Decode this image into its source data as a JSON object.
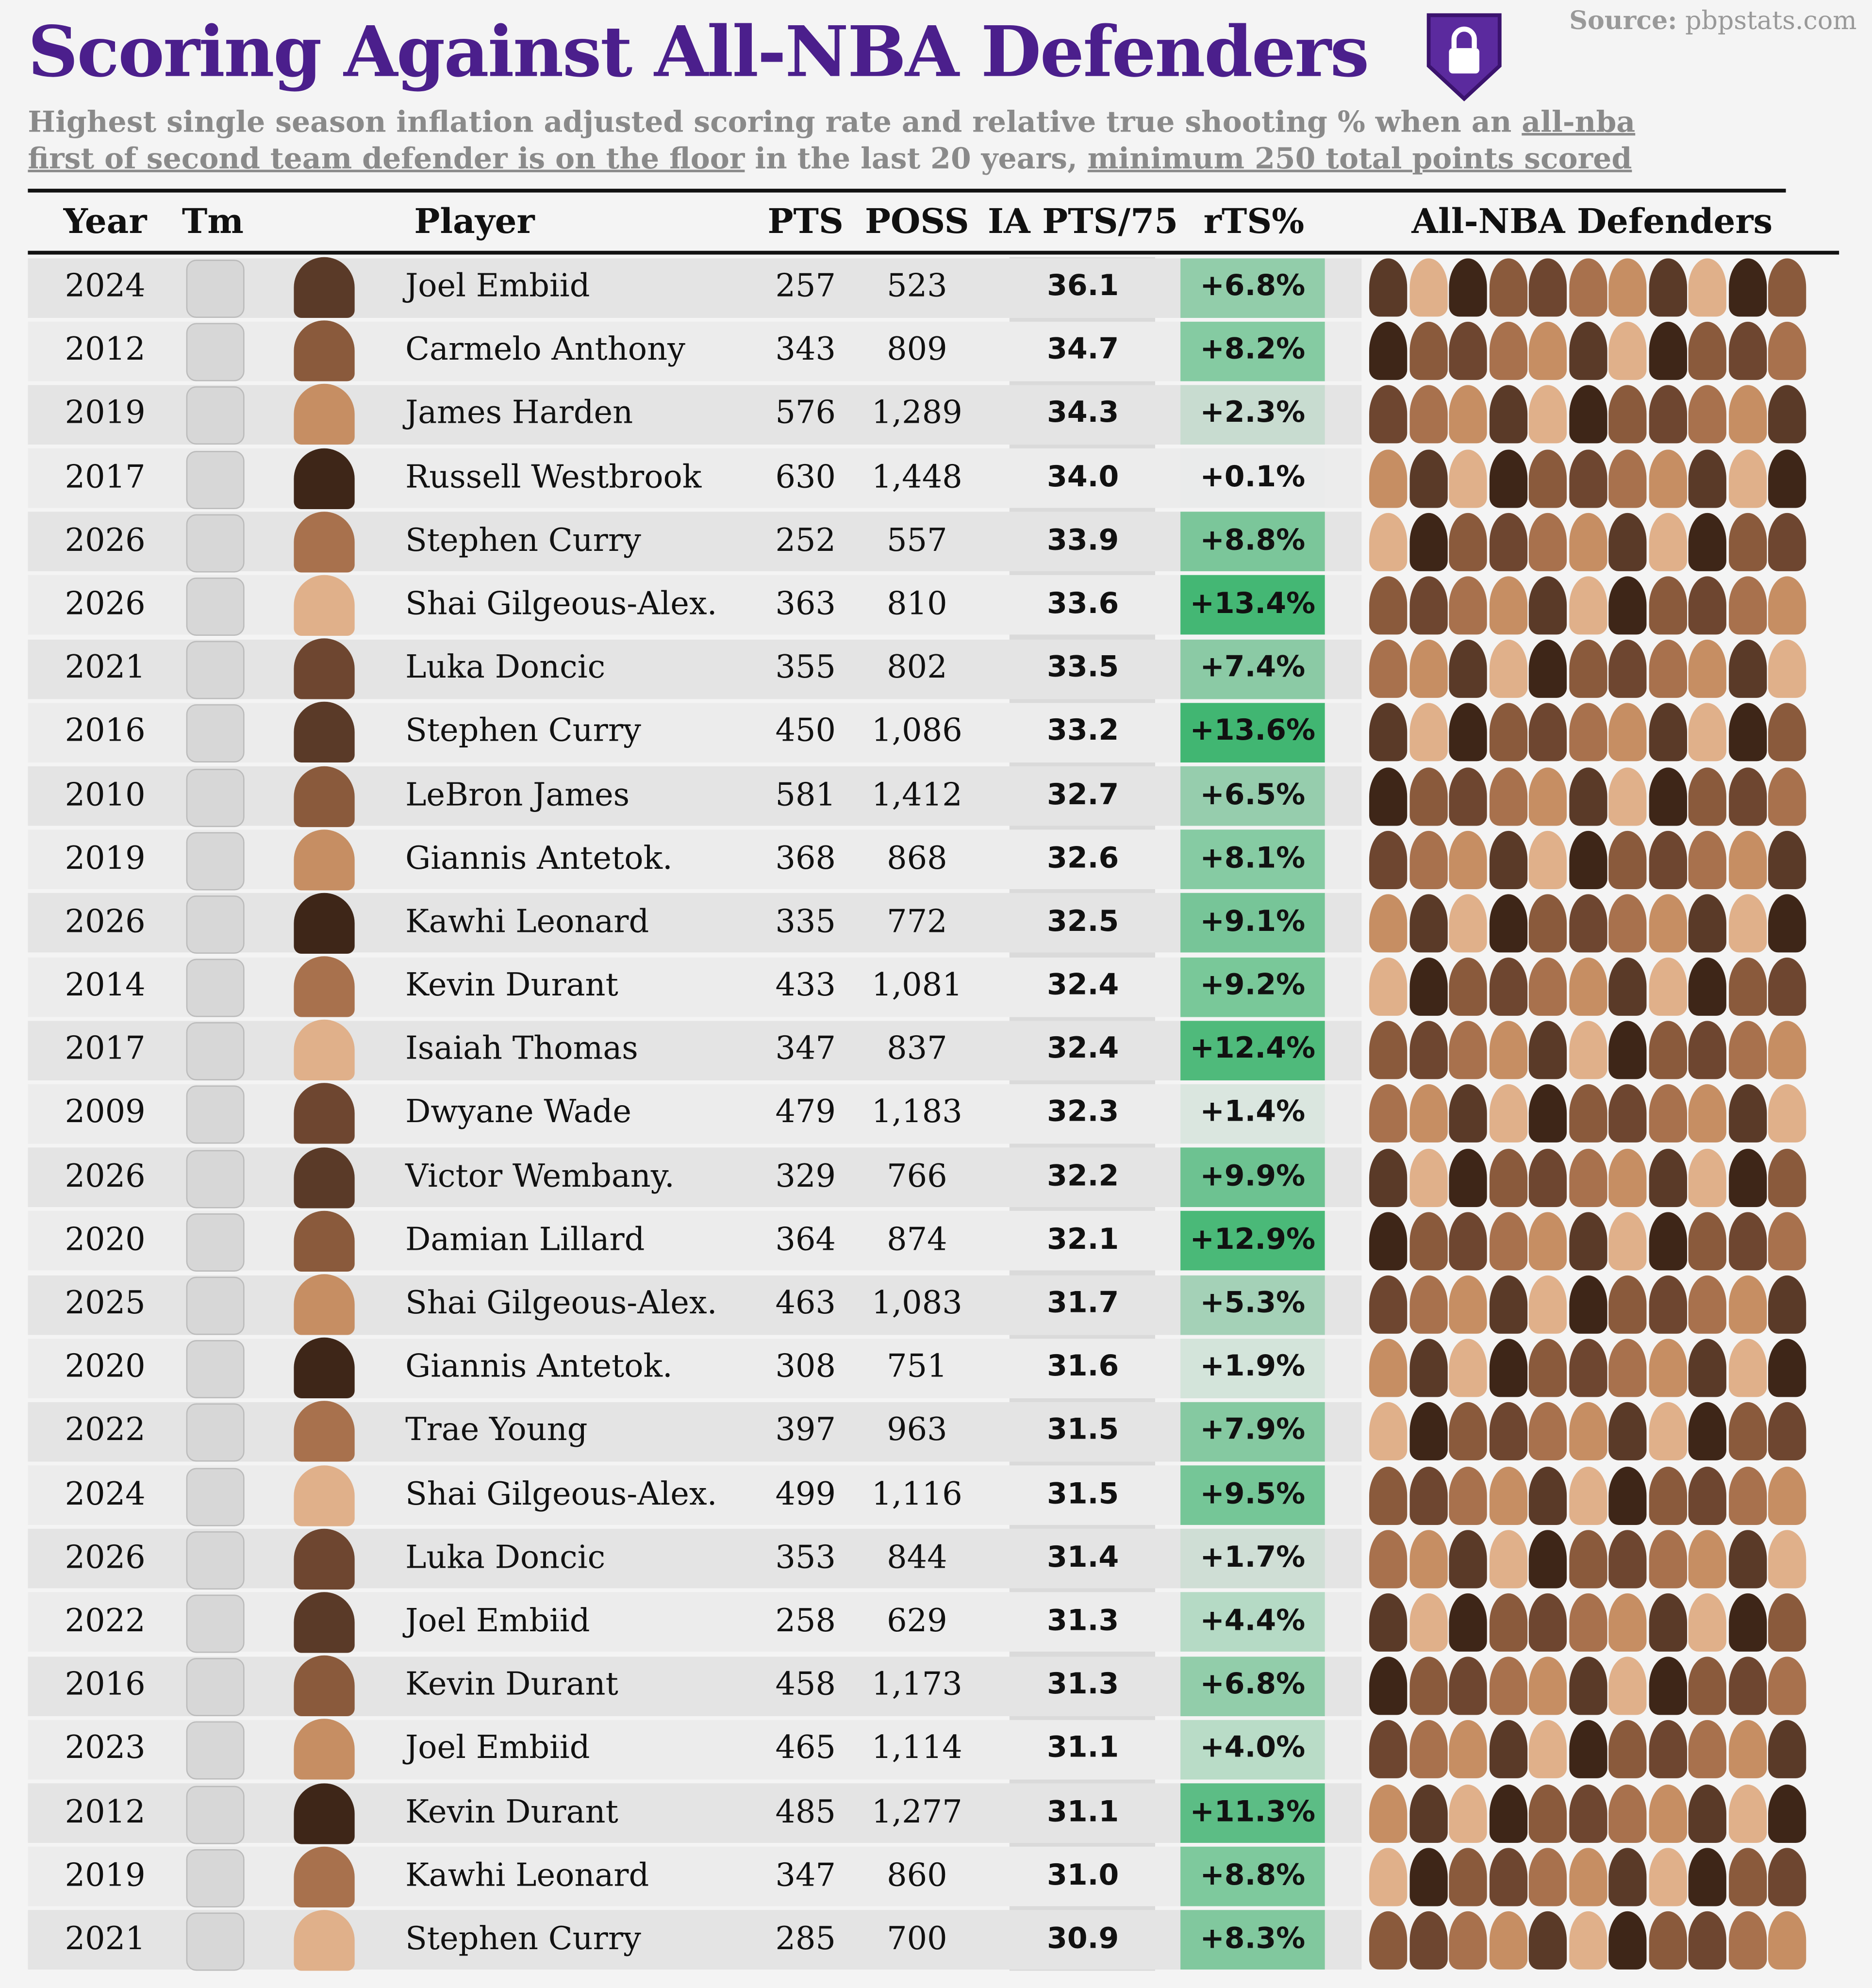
{
  "header": {
    "title": "Scoring Against All-NBA Defenders",
    "source_label": "Source:",
    "source": "pbpstats.com",
    "subtitle": [
      "Highest single season inflation adjusted scoring rate and relative true shooting % when an ",
      "all-nba first of second team defender is on the floor",
      " in the last 20 years, ",
      "minimum 250 total points scored"
    ]
  },
  "table": {
    "columns": [
      "Year",
      "Tm",
      "Player",
      "PTS",
      "POSS",
      "IA PTS/75",
      "rTS%",
      "All-NBA Defenders"
    ],
    "rows": [
      [
        "2024",
        "Joel Embiid",
        "257",
        "523",
        "36.1",
        "+6.8%"
      ],
      [
        "2012",
        "Carmelo Anthony",
        "343",
        "809",
        "34.7",
        "+8.2%"
      ],
      [
        "2019",
        "James Harden",
        "576",
        "1,289",
        "34.3",
        "+2.3%"
      ],
      [
        "2017",
        "Russell Westbrook",
        "630",
        "1,448",
        "34.0",
        "+0.1%"
      ],
      [
        "2026",
        "Stephen Curry",
        "252",
        "557",
        "33.9",
        "+8.8%"
      ],
      [
        "2026",
        "Shai Gilgeous-Alex.",
        "363",
        "810",
        "33.6",
        "+13.4%"
      ],
      [
        "2021",
        "Luka Doncic",
        "355",
        "802",
        "33.5",
        "+7.4%"
      ],
      [
        "2016",
        "Stephen Curry",
        "450",
        "1,086",
        "33.2",
        "+13.6%"
      ],
      [
        "2010",
        "LeBron James",
        "581",
        "1,412",
        "32.7",
        "+6.5%"
      ],
      [
        "2019",
        "Giannis Antetok.",
        "368",
        "868",
        "32.6",
        "+8.1%"
      ],
      [
        "2026",
        "Kawhi Leonard",
        "335",
        "772",
        "32.5",
        "+9.1%"
      ],
      [
        "2014",
        "Kevin Durant",
        "433",
        "1,081",
        "32.4",
        "+9.2%"
      ],
      [
        "2017",
        "Isaiah Thomas",
        "347",
        "837",
        "32.4",
        "+12.4%"
      ],
      [
        "2009",
        "Dwyane Wade",
        "479",
        "1,183",
        "32.3",
        "+1.4%"
      ],
      [
        "2026",
        "Victor Wembany.",
        "329",
        "766",
        "32.2",
        "+9.9%"
      ],
      [
        "2020",
        "Damian Lillard",
        "364",
        "874",
        "32.1",
        "+12.9%"
      ],
      [
        "2025",
        "Shai Gilgeous-Alex.",
        "463",
        "1,083",
        "31.7",
        "+5.3%"
      ],
      [
        "2020",
        "Giannis Antetok.",
        "308",
        "751",
        "31.6",
        "+1.9%"
      ],
      [
        "2022",
        "Trae Young",
        "397",
        "963",
        "31.5",
        "+7.9%"
      ],
      [
        "2024",
        "Shai Gilgeous-Alex.",
        "499",
        "1,116",
        "31.5",
        "+9.5%"
      ],
      [
        "2026",
        "Luka Doncic",
        "353",
        "844",
        "31.4",
        "+1.7%"
      ],
      [
        "2022",
        "Joel Embiid",
        "258",
        "629",
        "31.3",
        "+4.4%"
      ],
      [
        "2016",
        "Kevin Durant",
        "458",
        "1,173",
        "31.3",
        "+6.8%"
      ],
      [
        "2023",
        "Joel Embiid",
        "465",
        "1,114",
        "31.1",
        "+4.0%"
      ],
      [
        "2012",
        "Kevin Durant",
        "485",
        "1,277",
        "31.1",
        "+11.3%"
      ],
      [
        "2019",
        "Kawhi Leonard",
        "347",
        "860",
        "31.0",
        "+8.8%"
      ],
      [
        "2021",
        "Stephen Curry",
        "285",
        "700",
        "30.9",
        "+8.3%"
      ]
    ]
  }
}
